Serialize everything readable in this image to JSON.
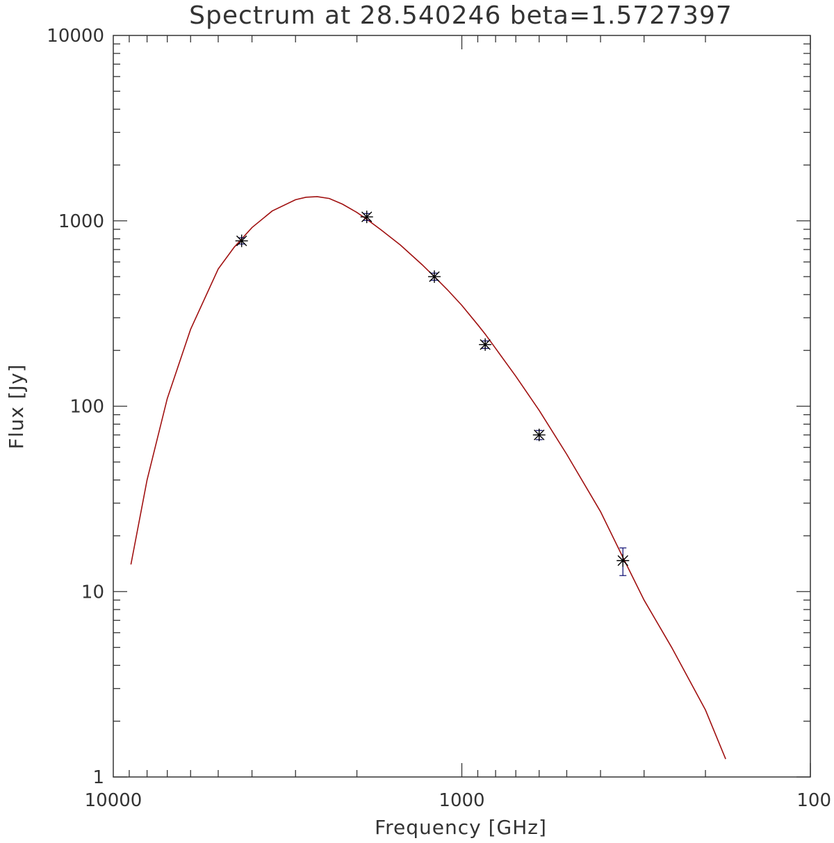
{
  "chart_data": {
    "type": "scatter",
    "title": "Spectrum at 28.540246 beta=1.5727397",
    "xlabel": "Frequency [GHz]",
    "ylabel": "Flux [Jy]",
    "xscale": "log",
    "yscale": "log",
    "x_reversed": true,
    "xlim": [
      10000,
      100
    ],
    "ylim": [
      1,
      10000
    ],
    "x_tick_labels": [
      "10000",
      "1000",
      "100"
    ],
    "y_tick_labels": [
      "1",
      "10",
      "100",
      "1000",
      "10000"
    ],
    "grid": false,
    "legend": "none",
    "series": [
      {
        "type": "scatter",
        "marker": "asterisk",
        "x": [
          4283,
          1874,
          1199,
          857,
          600,
          345
        ],
        "y": [
          780,
          1050,
          500,
          215,
          70,
          14.7
        ],
        "yerr": [
          30,
          45,
          22,
          10,
          4,
          2.5
        ],
        "color": "#000000",
        "errorbar_color": "#1a1a7a"
      },
      {
        "type": "line",
        "x": [
          8900,
          8000,
          7000,
          6000,
          5000,
          4500,
          4000,
          3500,
          3000,
          2800,
          2600,
          2400,
          2200,
          2000,
          1874,
          1700,
          1500,
          1300,
          1199,
          1100,
          1000,
          900,
          857,
          800,
          700,
          600,
          500,
          400,
          345,
          300,
          250,
          200,
          175
        ],
        "y": [
          14,
          40,
          110,
          260,
          550,
          720,
          920,
          1130,
          1300,
          1340,
          1350,
          1320,
          1230,
          1110,
          1020,
          890,
          740,
          580,
          500,
          425,
          350,
          275,
          245,
          205,
          145,
          95,
          55,
          27,
          15.3,
          9,
          5,
          2.3,
          1.25
        ],
        "color": "#a01010"
      }
    ]
  }
}
